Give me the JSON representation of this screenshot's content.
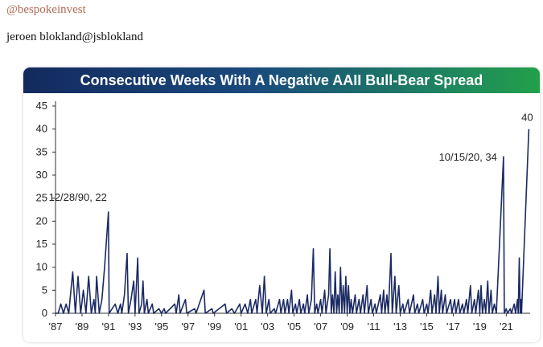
{
  "tweet": {
    "handle": "@bespokeinvest",
    "author_line": "jeroen blokland@jsblokland"
  },
  "chart_data": {
    "type": "area",
    "title": "Consecutive Weeks With A Negative AAII Bull-Bear Spread",
    "xlabel": "",
    "ylabel": "",
    "ylim": [
      0,
      45
    ],
    "yticks": [
      0,
      5,
      10,
      15,
      20,
      25,
      30,
      35,
      40,
      45
    ],
    "xlim": [
      1987.0,
      2022.8
    ],
    "xtick_labels": [
      "'87",
      "'89",
      "'91",
      "'93",
      "'95",
      "'97",
      "'99",
      "'01",
      "'03",
      "'05",
      "'07",
      "'09",
      "'11",
      "'13",
      "'15",
      "'17",
      "'19",
      "'21"
    ],
    "xtick_years": [
      1987,
      1989,
      1991,
      1993,
      1995,
      1997,
      1999,
      2001,
      2003,
      2005,
      2007,
      2009,
      2011,
      2013,
      2015,
      2017,
      2019,
      2021
    ],
    "grid": false,
    "legend": "none",
    "series_color": "#1b2a63",
    "peaks": [
      [
        1987.2,
        0
      ],
      [
        1987.4,
        2
      ],
      [
        1987.6,
        0
      ],
      [
        1987.8,
        2
      ],
      [
        1988.0,
        0
      ],
      [
        1988.1,
        3
      ],
      [
        1988.3,
        9
      ],
      [
        1988.5,
        0
      ],
      [
        1988.7,
        8
      ],
      [
        1988.9,
        0
      ],
      [
        1989.1,
        5
      ],
      [
        1989.3,
        0
      ],
      [
        1989.5,
        8
      ],
      [
        1989.7,
        0
      ],
      [
        1989.9,
        3
      ],
      [
        1990.0,
        0
      ],
      [
        1990.1,
        8
      ],
      [
        1990.3,
        0
      ],
      [
        1990.5,
        3
      ],
      [
        1990.7,
        10
      ],
      [
        1990.99,
        22
      ],
      [
        1991.05,
        0
      ],
      [
        1991.5,
        2
      ],
      [
        1991.7,
        0
      ],
      [
        1991.9,
        2
      ],
      [
        1992.0,
        0
      ],
      [
        1992.2,
        4
      ],
      [
        1992.4,
        13
      ],
      [
        1992.5,
        0
      ],
      [
        1992.7,
        3
      ],
      [
        1992.9,
        7
      ],
      [
        1993.0,
        0
      ],
      [
        1993.2,
        12
      ],
      [
        1993.3,
        0
      ],
      [
        1993.5,
        2
      ],
      [
        1993.6,
        7
      ],
      [
        1993.7,
        0
      ],
      [
        1993.9,
        3
      ],
      [
        1994.0,
        0
      ],
      [
        1994.3,
        2
      ],
      [
        1994.4,
        0
      ],
      [
        1994.8,
        1
      ],
      [
        1995.0,
        0
      ],
      [
        1995.2,
        1
      ],
      [
        1995.3,
        0
      ],
      [
        1996.0,
        2
      ],
      [
        1996.1,
        0
      ],
      [
        1996.3,
        4
      ],
      [
        1996.4,
        0
      ],
      [
        1996.8,
        3
      ],
      [
        1996.9,
        0
      ],
      [
        1997.5,
        1
      ],
      [
        1997.6,
        0
      ],
      [
        1998.2,
        5
      ],
      [
        1998.3,
        0
      ],
      [
        1998.8,
        1
      ],
      [
        1998.9,
        0
      ],
      [
        1999.8,
        2
      ],
      [
        1999.9,
        0
      ],
      [
        2000.3,
        1
      ],
      [
        2000.5,
        0
      ],
      [
        2000.9,
        2
      ],
      [
        2001.0,
        0
      ],
      [
        2001.3,
        2
      ],
      [
        2001.5,
        0
      ],
      [
        2001.7,
        3
      ],
      [
        2001.8,
        0
      ],
      [
        2002.1,
        3
      ],
      [
        2002.2,
        0
      ],
      [
        2002.4,
        6
      ],
      [
        2002.6,
        0
      ],
      [
        2002.75,
        8
      ],
      [
        2002.9,
        0
      ],
      [
        2003.1,
        3
      ],
      [
        2003.2,
        0
      ],
      [
        2003.5,
        1
      ],
      [
        2003.6,
        0
      ],
      [
        2003.9,
        3
      ],
      [
        2004.0,
        0
      ],
      [
        2004.2,
        3
      ],
      [
        2004.3,
        0
      ],
      [
        2004.5,
        3
      ],
      [
        2004.6,
        0
      ],
      [
        2004.8,
        5
      ],
      [
        2004.9,
        0
      ],
      [
        2005.1,
        2
      ],
      [
        2005.2,
        0
      ],
      [
        2005.4,
        3
      ],
      [
        2005.5,
        0
      ],
      [
        2005.7,
        2
      ],
      [
        2005.8,
        0
      ],
      [
        2006.0,
        4
      ],
      [
        2006.1,
        0
      ],
      [
        2006.3,
        3
      ],
      [
        2006.45,
        14
      ],
      [
        2006.55,
        0
      ],
      [
        2006.7,
        2
      ],
      [
        2006.8,
        0
      ],
      [
        2007.0,
        3
      ],
      [
        2007.1,
        0
      ],
      [
        2007.3,
        5
      ],
      [
        2007.4,
        0
      ],
      [
        2007.6,
        4
      ],
      [
        2007.7,
        14
      ],
      [
        2007.8,
        0
      ],
      [
        2007.9,
        4
      ],
      [
        2008.0,
        0
      ],
      [
        2008.1,
        9
      ],
      [
        2008.2,
        0
      ],
      [
        2008.3,
        4
      ],
      [
        2008.4,
        0
      ],
      [
        2008.5,
        10
      ],
      [
        2008.6,
        0
      ],
      [
        2008.7,
        6
      ],
      [
        2008.8,
        0
      ],
      [
        2008.9,
        8
      ],
      [
        2009.0,
        0
      ],
      [
        2009.1,
        6
      ],
      [
        2009.2,
        0
      ],
      [
        2009.3,
        3
      ],
      [
        2009.4,
        0
      ],
      [
        2009.6,
        4
      ],
      [
        2009.7,
        0
      ],
      [
        2009.9,
        3
      ],
      [
        2010.0,
        0
      ],
      [
        2010.2,
        4
      ],
      [
        2010.3,
        0
      ],
      [
        2010.5,
        6
      ],
      [
        2010.6,
        0
      ],
      [
        2010.8,
        3
      ],
      [
        2010.9,
        0
      ],
      [
        2011.1,
        2
      ],
      [
        2011.2,
        0
      ],
      [
        2011.5,
        4
      ],
      [
        2011.6,
        0
      ],
      [
        2011.75,
        5
      ],
      [
        2011.85,
        0
      ],
      [
        2012.0,
        4
      ],
      [
        2012.1,
        0
      ],
      [
        2012.3,
        13
      ],
      [
        2012.4,
        0
      ],
      [
        2012.6,
        8
      ],
      [
        2012.7,
        0
      ],
      [
        2012.9,
        6
      ],
      [
        2013.0,
        0
      ],
      [
        2013.2,
        2
      ],
      [
        2013.3,
        0
      ],
      [
        2013.6,
        3
      ],
      [
        2013.7,
        0
      ],
      [
        2014.0,
        4
      ],
      [
        2014.1,
        0
      ],
      [
        2014.3,
        2
      ],
      [
        2014.4,
        0
      ],
      [
        2014.7,
        3
      ],
      [
        2014.8,
        0
      ],
      [
        2015.0,
        2
      ],
      [
        2015.1,
        0
      ],
      [
        2015.3,
        5
      ],
      [
        2015.4,
        0
      ],
      [
        2015.6,
        4
      ],
      [
        2015.7,
        0
      ],
      [
        2015.85,
        8
      ],
      [
        2015.95,
        0
      ],
      [
        2016.1,
        5
      ],
      [
        2016.2,
        0
      ],
      [
        2016.4,
        4
      ],
      [
        2016.5,
        0
      ],
      [
        2016.8,
        3
      ],
      [
        2016.9,
        0
      ],
      [
        2017.1,
        3
      ],
      [
        2017.2,
        0
      ],
      [
        2017.4,
        3
      ],
      [
        2017.5,
        0
      ],
      [
        2017.7,
        2
      ],
      [
        2017.8,
        0
      ],
      [
        2018.0,
        3
      ],
      [
        2018.1,
        0
      ],
      [
        2018.3,
        6
      ],
      [
        2018.4,
        0
      ],
      [
        2018.6,
        3
      ],
      [
        2018.7,
        0
      ],
      [
        2018.9,
        5
      ],
      [
        2019.0,
        0
      ],
      [
        2019.1,
        6
      ],
      [
        2019.2,
        0
      ],
      [
        2019.35,
        3
      ],
      [
        2019.45,
        0
      ],
      [
        2019.6,
        7
      ],
      [
        2019.7,
        0
      ],
      [
        2019.85,
        5
      ],
      [
        2019.95,
        0
      ],
      [
        2020.1,
        2
      ],
      [
        2020.25,
        0
      ],
      [
        2020.79,
        34
      ],
      [
        2020.85,
        0
      ],
      [
        2021.0,
        1
      ],
      [
        2021.1,
        0
      ],
      [
        2021.3,
        1
      ],
      [
        2021.4,
        0
      ],
      [
        2021.6,
        2
      ],
      [
        2021.7,
        0
      ],
      [
        2021.85,
        3
      ],
      [
        2021.9,
        0
      ],
      [
        2021.98,
        12
      ],
      [
        2022.05,
        0
      ],
      [
        2022.12,
        3
      ],
      [
        2022.15,
        0
      ],
      [
        2022.7,
        40
      ]
    ],
    "annotations": [
      {
        "label": "12/28/90, 22",
        "x": 1990.99,
        "y": 22
      },
      {
        "label": "10/15/20, 34",
        "x": 2020.79,
        "y": 34
      },
      {
        "label": "40",
        "x": 2022.7,
        "y": 40
      }
    ]
  }
}
